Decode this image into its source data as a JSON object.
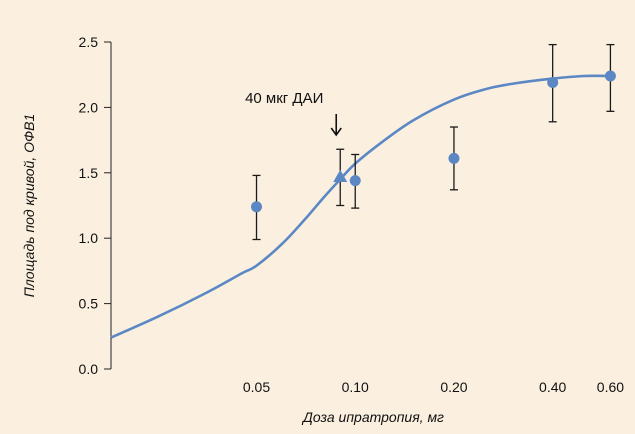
{
  "chart_data": {
    "type": "scatter",
    "xlabel": "Доза ипратропия, мг",
    "ylabel": "Площадь под кривой, ОФВ1",
    "x_scale": "log",
    "xlim": [
      0.018,
      0.66
    ],
    "ylim": [
      0,
      2.5
    ],
    "x_ticks": [
      {
        "value": 0.05,
        "label": "0.05"
      },
      {
        "value": 0.1,
        "label": "0.10"
      },
      {
        "value": 0.2,
        "label": "0.20"
      },
      {
        "value": 0.4,
        "label": "0.40"
      },
      {
        "value": 0.6,
        "label": "0.60"
      }
    ],
    "y_ticks": [
      {
        "value": 0.0,
        "label": "0.0"
      },
      {
        "value": 0.5,
        "label": "0.5"
      },
      {
        "value": 1.0,
        "label": "1.0"
      },
      {
        "value": 1.5,
        "label": "1.5"
      },
      {
        "value": 2.0,
        "label": "2.0"
      },
      {
        "value": 2.5,
        "label": "2.5"
      }
    ],
    "points": [
      {
        "x": 0.05,
        "y": 1.24,
        "err_low": 0.99,
        "err_high": 1.48,
        "marker": "circle"
      },
      {
        "x": 0.1,
        "y": 1.44,
        "err_low": 1.23,
        "err_high": 1.64,
        "marker": "circle"
      },
      {
        "x": 0.2,
        "y": 1.61,
        "err_low": 1.37,
        "err_high": 1.85,
        "marker": "circle"
      },
      {
        "x": 0.4,
        "y": 2.19,
        "err_low": 1.89,
        "err_high": 2.48,
        "marker": "circle"
      },
      {
        "x": 0.6,
        "y": 2.24,
        "err_low": 1.97,
        "err_high": 2.48,
        "marker": "circle"
      },
      {
        "x": 0.09,
        "y": 1.47,
        "err_low": 1.25,
        "err_high": 1.68,
        "marker": "triangle"
      }
    ],
    "curve": {
      "x": [
        0.018,
        0.025,
        0.035,
        0.045,
        0.05,
        0.06,
        0.07,
        0.08,
        0.09,
        0.1,
        0.12,
        0.15,
        0.2,
        0.25,
        0.3,
        0.4,
        0.5,
        0.6
      ],
      "y": [
        0.24,
        0.4,
        0.58,
        0.73,
        0.79,
        0.96,
        1.14,
        1.31,
        1.45,
        1.57,
        1.73,
        1.9,
        2.06,
        2.14,
        2.18,
        2.22,
        2.24,
        2.24
      ]
    },
    "annotation": {
      "text": "40 мкг ДАИ",
      "x": 0.09
    },
    "colors": {
      "series": "#5b88c4",
      "error_bars": "#1a1a1a",
      "background": "#fbf0df"
    },
    "grid": false
  }
}
